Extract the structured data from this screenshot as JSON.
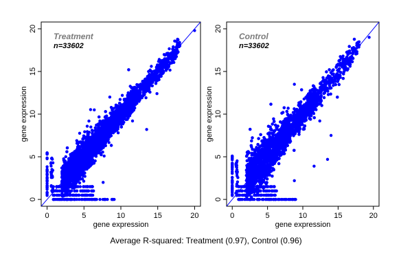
{
  "chart_data": [
    {
      "type": "scatter",
      "panel_title": "Treatment",
      "n_label": "n=33602",
      "xlabel": "gene expression",
      "ylabel": "gene expression",
      "xlim": [
        -0.8,
        20.8
      ],
      "ylim": [
        -0.8,
        20.8
      ],
      "xticks": [
        0,
        5,
        10,
        15,
        20
      ],
      "yticks": [
        0,
        5,
        10,
        15,
        20
      ],
      "n_points": 33602,
      "point_color": "#0000ff",
      "reference_line": {
        "slope": 1,
        "intercept": 0
      },
      "highlight_points": [
        [
          20,
          19.8
        ],
        [
          18,
          18
        ],
        [
          17.3,
          17.5
        ],
        [
          6.4,
          10.5
        ],
        [
          8.5,
          12
        ],
        [
          4.2,
          4.5
        ],
        [
          10.2,
          12.2
        ],
        [
          11,
          12.5
        ],
        [
          7.6,
          2
        ],
        [
          13.5,
          8.2
        ],
        [
          9.3,
          10.8
        ]
      ]
    },
    {
      "type": "scatter",
      "panel_title": "Control",
      "n_label": "n=33602",
      "xlabel": "gene expression",
      "ylabel": "gene expression",
      "xlim": [
        -0.8,
        20.8
      ],
      "ylim": [
        -0.8,
        20.8
      ],
      "xticks": [
        0,
        5,
        10,
        15,
        20
      ],
      "yticks": [
        0,
        5,
        10,
        15,
        20
      ],
      "n_points": 33602,
      "point_color": "#0000ff",
      "reference_line": {
        "slope": 1,
        "intercept": 0
      },
      "highlight_points": [
        [
          19.4,
          19
        ],
        [
          17.2,
          17.8
        ],
        [
          15.7,
          16.8
        ],
        [
          5.4,
          8.5
        ],
        [
          8.8,
          13.5
        ],
        [
          13.5,
          4.7
        ],
        [
          14,
          7.5
        ],
        [
          7.2,
          10.2
        ],
        [
          8.8,
          2.2
        ],
        [
          12.4,
          9.2
        ],
        [
          11.6,
          3.9
        ]
      ]
    }
  ],
  "caption": "Average R-squared: Treatment (0.97), Control (0.96)"
}
